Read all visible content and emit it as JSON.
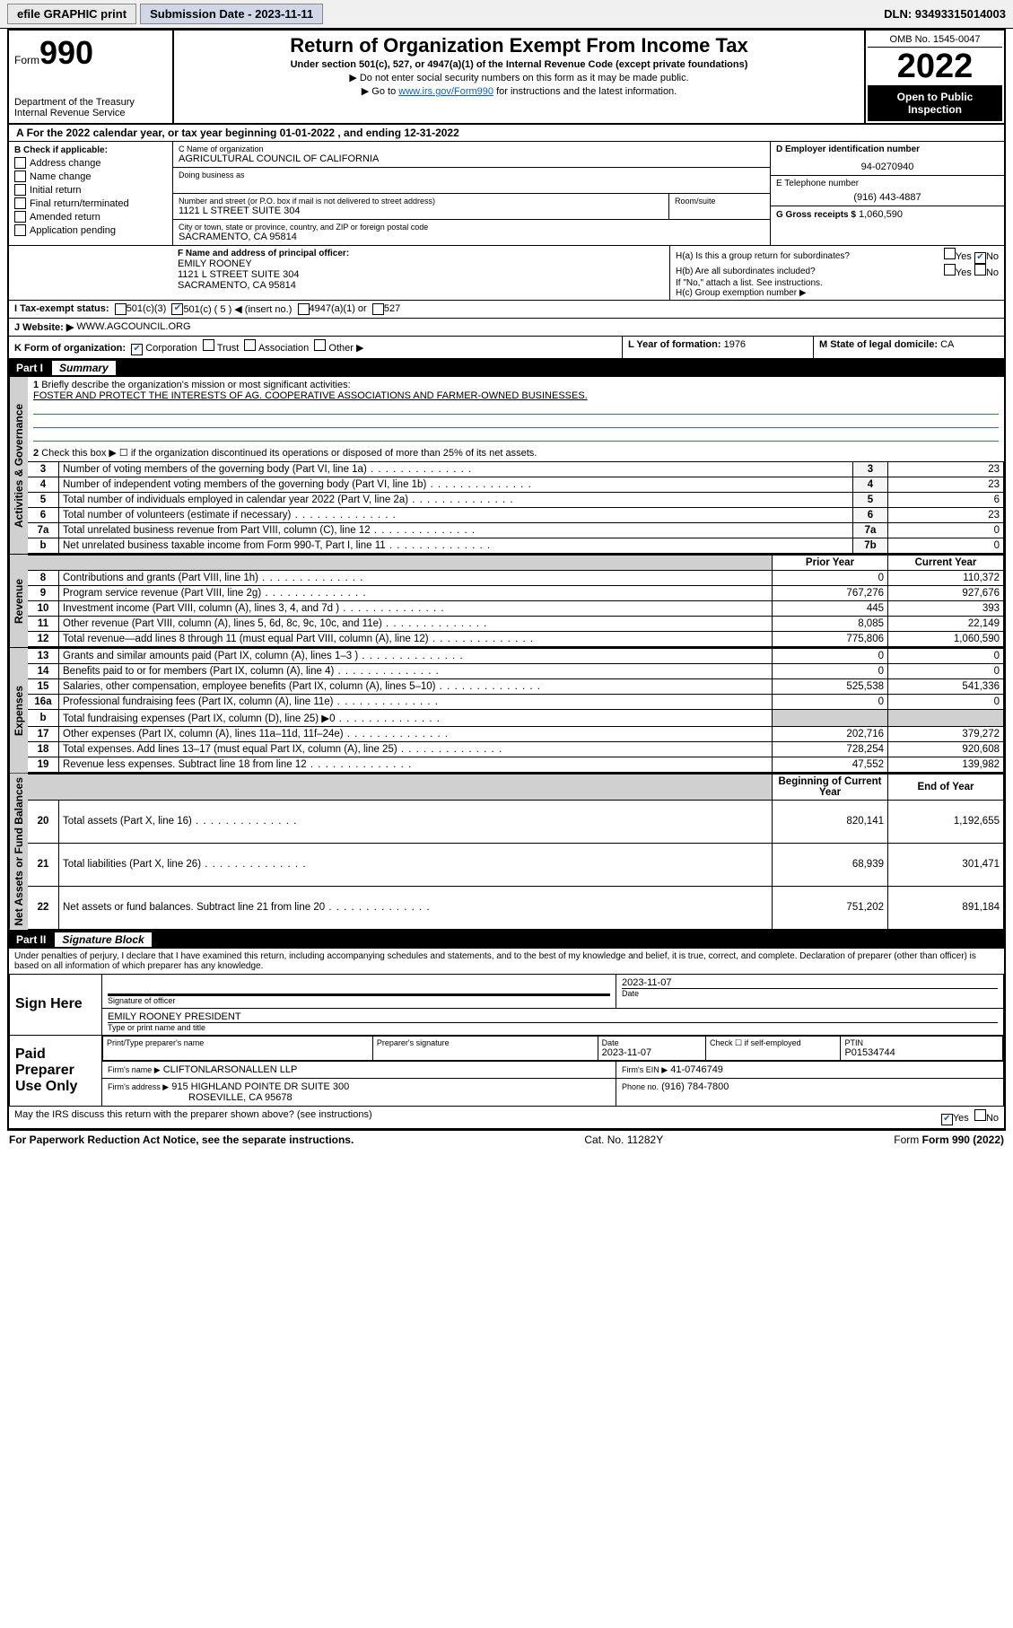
{
  "topbar": {
    "efile": "efile GRAPHIC print",
    "submission_label": "Submission Date - 2023-11-11",
    "dln": "DLN: 93493315014003"
  },
  "header": {
    "form_word": "Form",
    "form_no": "990",
    "dept": "Department of the Treasury\nInternal Revenue Service",
    "title": "Return of Organization Exempt From Income Tax",
    "sub": "Under section 501(c), 527, or 4947(a)(1) of the Internal Revenue Code (except private foundations)",
    "note1": "▶ Do not enter social security numbers on this form as it may be made public.",
    "note2_pre": "▶ Go to ",
    "note2_link": "www.irs.gov/Form990",
    "note2_post": " for instructions and the latest information.",
    "omb": "OMB No. 1545-0047",
    "year": "2022",
    "inspection": "Open to Public Inspection"
  },
  "lineA": "For the 2022 calendar year, or tax year beginning 01-01-2022   , and ending 12-31-2022",
  "B": {
    "label": "B Check if applicable:",
    "items": [
      "Address change",
      "Name change",
      "Initial return",
      "Final return/terminated",
      "Amended return",
      "Application pending"
    ]
  },
  "C": {
    "name_label": "C Name of organization",
    "name": "AGRICULTURAL COUNCIL OF CALIFORNIA",
    "dba_label": "Doing business as",
    "street_label": "Number and street (or P.O. box if mail is not delivered to street address)",
    "room_label": "Room/suite",
    "street": "1121 L STREET SUITE 304",
    "city_label": "City or town, state or province, country, and ZIP or foreign postal code",
    "city": "SACRAMENTO, CA  95814"
  },
  "D": {
    "label": "D Employer identification number",
    "value": "94-0270940"
  },
  "E": {
    "label": "E Telephone number",
    "value": "(916) 443-4887"
  },
  "G": {
    "label": "G Gross receipts $",
    "value": "1,060,590"
  },
  "F": {
    "label": "F  Name and address of principal officer:",
    "name": "EMILY ROONEY",
    "street": "1121 L STREET SUITE 304",
    "city": "SACRAMENTO, CA  95814"
  },
  "H": {
    "a": "H(a)  Is this a group return for subordinates?",
    "a_yes": "Yes",
    "a_no": "No",
    "b": "H(b)  Are all subordinates included?",
    "b_yes": "Yes",
    "b_no": "No",
    "note": "If \"No,\" attach a list. See instructions.",
    "c": "H(c)  Group exemption number ▶"
  },
  "I": {
    "label": "I   Tax-exempt status:",
    "c3": "501(c)(3)",
    "c5": "501(c) ( 5 ) ◀ (insert no.)",
    "a4947": "4947(a)(1) or",
    "s527": "527"
  },
  "J": {
    "label": "J   Website: ▶",
    "value": "WWW.AGCOUNCIL.ORG"
  },
  "K": {
    "label": "K Form of organization:",
    "opts": [
      "Corporation",
      "Trust",
      "Association",
      "Other ▶"
    ]
  },
  "L": {
    "label": "L Year of formation:",
    "value": "1976"
  },
  "M": {
    "label": "M State of legal domicile:",
    "value": "CA"
  },
  "part1": {
    "label": "Part I",
    "title": "Summary",
    "q1_label": "1",
    "q1": "Briefly describe the organization's mission or most significant activities:",
    "q1_val": "FOSTER AND PROTECT THE INTERESTS OF AG. COOPERATIVE ASSOCIATIONS AND FARMER-OWNED BUSINESSES.",
    "q2_label": "2",
    "q2": "Check this box ▶ ☐  if the organization discontinued its operations or disposed of more than 25% of its net assets.",
    "gov_rows": [
      {
        "n": "3",
        "d": "Number of voting members of the governing body (Part VI, line 1a)",
        "k": "3",
        "v": "23"
      },
      {
        "n": "4",
        "d": "Number of independent voting members of the governing body (Part VI, line 1b)",
        "k": "4",
        "v": "23"
      },
      {
        "n": "5",
        "d": "Total number of individuals employed in calendar year 2022 (Part V, line 2a)",
        "k": "5",
        "v": "6"
      },
      {
        "n": "6",
        "d": "Total number of volunteers (estimate if necessary)",
        "k": "6",
        "v": "23"
      },
      {
        "n": "7a",
        "d": "Total unrelated business revenue from Part VIII, column (C), line 12",
        "k": "7a",
        "v": "0"
      },
      {
        "n": "b",
        "d": "Net unrelated business taxable income from Form 990-T, Part I, line 11",
        "k": "7b",
        "v": "0"
      }
    ],
    "col_prior": "Prior Year",
    "col_current": "Current Year",
    "rev_rows": [
      {
        "n": "8",
        "d": "Contributions and grants (Part VIII, line 1h)",
        "p": "0",
        "c": "110,372"
      },
      {
        "n": "9",
        "d": "Program service revenue (Part VIII, line 2g)",
        "p": "767,276",
        "c": "927,676"
      },
      {
        "n": "10",
        "d": "Investment income (Part VIII, column (A), lines 3, 4, and 7d )",
        "p": "445",
        "c": "393"
      },
      {
        "n": "11",
        "d": "Other revenue (Part VIII, column (A), lines 5, 6d, 8c, 9c, 10c, and 11e)",
        "p": "8,085",
        "c": "22,149"
      },
      {
        "n": "12",
        "d": "Total revenue—add lines 8 through 11 (must equal Part VIII, column (A), line 12)",
        "p": "775,806",
        "c": "1,060,590"
      }
    ],
    "exp_rows": [
      {
        "n": "13",
        "d": "Grants and similar amounts paid (Part IX, column (A), lines 1–3 )",
        "p": "0",
        "c": "0"
      },
      {
        "n": "14",
        "d": "Benefits paid to or for members (Part IX, column (A), line 4)",
        "p": "0",
        "c": "0"
      },
      {
        "n": "15",
        "d": "Salaries, other compensation, employee benefits (Part IX, column (A), lines 5–10)",
        "p": "525,538",
        "c": "541,336"
      },
      {
        "n": "16a",
        "d": "Professional fundraising fees (Part IX, column (A), line 11e)",
        "p": "0",
        "c": "0"
      },
      {
        "n": "b",
        "d": "Total fundraising expenses (Part IX, column (D), line 25) ▶0",
        "p": "",
        "c": ""
      },
      {
        "n": "17",
        "d": "Other expenses (Part IX, column (A), lines 11a–11d, 11f–24e)",
        "p": "202,716",
        "c": "379,272"
      },
      {
        "n": "18",
        "d": "Total expenses. Add lines 13–17 (must equal Part IX, column (A), line 25)",
        "p": "728,254",
        "c": "920,608"
      },
      {
        "n": "19",
        "d": "Revenue less expenses. Subtract line 18 from line 12",
        "p": "47,552",
        "c": "139,982"
      }
    ],
    "col_begin": "Beginning of Current Year",
    "col_end": "End of Year",
    "net_rows": [
      {
        "n": "20",
        "d": "Total assets (Part X, line 16)",
        "p": "820,141",
        "c": "1,192,655"
      },
      {
        "n": "21",
        "d": "Total liabilities (Part X, line 26)",
        "p": "68,939",
        "c": "301,471"
      },
      {
        "n": "22",
        "d": "Net assets or fund balances. Subtract line 21 from line 20",
        "p": "751,202",
        "c": "891,184"
      }
    ],
    "section_gov": "Activities & Governance",
    "section_rev": "Revenue",
    "section_exp": "Expenses",
    "section_net": "Net Assets or Fund Balances"
  },
  "part2": {
    "label": "Part II",
    "title": "Signature Block",
    "penalties": "Under penalties of perjury, I declare that I have examined this return, including accompanying schedules and statements, and to the best of my knowledge and belief, it is true, correct, and complete. Declaration of preparer (other than officer) is based on all information of which preparer has any knowledge.",
    "sign_here": "Sign Here",
    "sig_officer": "Signature of officer",
    "sig_date_label": "Date",
    "sig_date": "2023-11-07",
    "sig_name": "EMILY ROONEY  PRESIDENT",
    "type_name": "Type or print name and title",
    "paid": "Paid Preparer Use Only",
    "prep_name_label": "Print/Type preparer's name",
    "prep_sig_label": "Preparer's signature",
    "prep_date_label": "Date",
    "prep_date": "2023-11-07",
    "selfemp": "Check ☐ if self-employed",
    "ptin_label": "PTIN",
    "ptin": "P01534744",
    "firm_name_label": "Firm's name   ▶",
    "firm_name": "CLIFTONLARSONALLEN LLP",
    "firm_ein_label": "Firm's EIN ▶",
    "firm_ein": "41-0746749",
    "firm_addr_label": "Firm's address ▶",
    "firm_addr1": "915 HIGHLAND POINTE DR SUITE 300",
    "firm_addr2": "ROSEVILLE, CA  95678",
    "firm_phone_label": "Phone no.",
    "firm_phone": "(916) 784-7800",
    "may_discuss": "May the IRS discuss this return with the preparer shown above? (see instructions)",
    "may_yes": "Yes",
    "may_no": "No"
  },
  "footer": {
    "left": "For Paperwork Reduction Act Notice, see the separate instructions.",
    "mid": "Cat. No. 11282Y",
    "right": "Form 990 (2022)"
  }
}
